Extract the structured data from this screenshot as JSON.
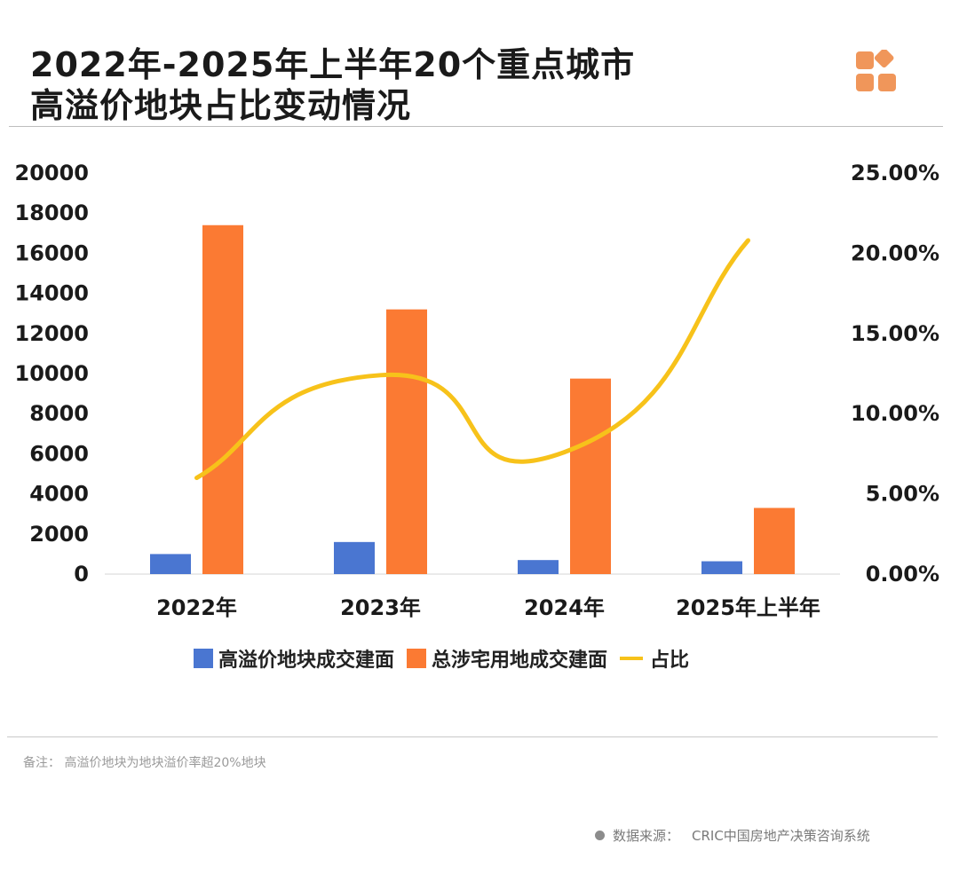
{
  "title": {
    "line1": "2022年-2025年上半年20个重点城市",
    "line2": "高溢价地块占比变动情况"
  },
  "logo": {
    "icon": "brand-tiles-icon",
    "color": "#f0965a"
  },
  "note": "备注：  高溢价地块为地块溢价率超20%地块",
  "source": {
    "label": "数据来源：",
    "text": "CRIC中国房地产决策咨询系统"
  },
  "colors": {
    "blue": "#4a76d1",
    "orange": "#fb7a33",
    "line": "#f7c21a"
  },
  "chart_data": {
    "type": "bar",
    "title": "2022年-2025年上半年20个重点城市高溢价地块占比变动情况",
    "categories": [
      "2022年",
      "2023年",
      "2024年",
      "2025年上半年"
    ],
    "series": [
      {
        "name": "高溢价地块成交建面",
        "kind": "bar",
        "axis": "left",
        "values": [
          1000,
          1600,
          700,
          640
        ]
      },
      {
        "name": "总涉宅用地成交建面",
        "kind": "bar",
        "axis": "left",
        "values": [
          17400,
          13200,
          9750,
          3300
        ]
      },
      {
        "name": "占比",
        "kind": "line",
        "axis": "right",
        "smooth": true,
        "values": [
          6.0,
          12.4,
          7.6,
          20.8
        ]
      }
    ],
    "left_axis": {
      "min": 0,
      "max": 20000,
      "ticks": [
        "0",
        "2000",
        "4000",
        "6000",
        "8000",
        "10000",
        "12000",
        "14000",
        "16000",
        "18000",
        "20000"
      ]
    },
    "right_axis": {
      "min": 0,
      "max": 25,
      "ticks": [
        "0.00%",
        "5.00%",
        "10.00%",
        "15.00%",
        "20.00%",
        "25.00%"
      ]
    },
    "legend": "bottom",
    "grid": false
  }
}
